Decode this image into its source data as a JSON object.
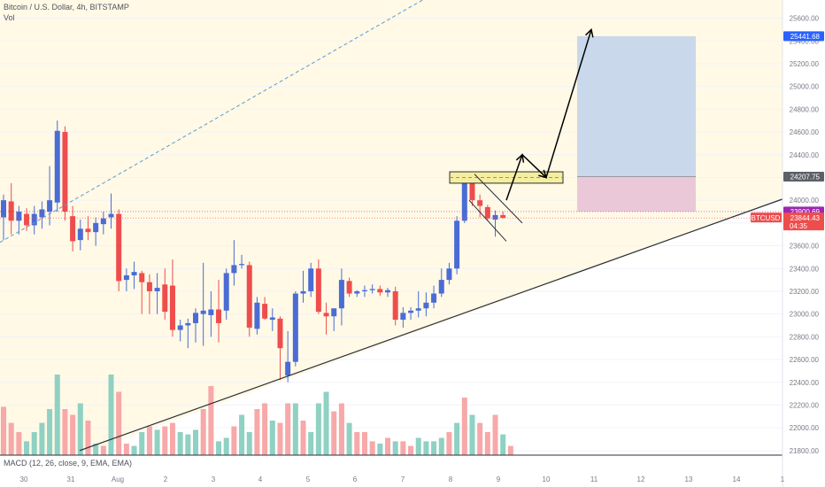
{
  "header": {
    "title": "Bitcoin / U.S. Dollar, 4h, BITSTAMP",
    "vol_label": "Vol",
    "macd_label": "MACD (12, 26, close, 9, EMA, EMA)"
  },
  "colors": {
    "up": "#4a6cd4",
    "down": "#ef4d4d",
    "vol_up": "#8fd1c2",
    "vol_down": "#f7a8a8",
    "zone_fill": "#fff9e6",
    "target_box": "#c9d8ea",
    "stop_box": "#ebc8d7",
    "price_tag": "#ef4d4d",
    "target_tag": "#2962ff",
    "entry_tag": "#5d6066",
    "purple_tag": "#9c27b0"
  },
  "chart_data": {
    "type": "candlestick",
    "symbol": "BTCUSD",
    "ylim": [
      21760,
      25760
    ],
    "y_ticks": [
      21800,
      22000,
      22200,
      22400,
      22600,
      22800,
      23000,
      23200,
      23400,
      23600,
      23800,
      24000,
      24200,
      24400,
      24600,
      24800,
      25000,
      25200,
      25400,
      25600
    ],
    "y_tick_labels": [
      "21800.00",
      "22000.00",
      "22200.00",
      "22400.00",
      "22600.00",
      "22800.00",
      "23000.00",
      "23200.00",
      "23400.00",
      "23600.00",
      "23800.00",
      "24000.00",
      "24200.00",
      "24400.00",
      "24600.00",
      "24800.00",
      "25000.00",
      "25200.00",
      "25400.00",
      "25600.00"
    ],
    "x_tick_labels": [
      "30",
      "31",
      "Aug",
      "2",
      "3",
      "4",
      "5",
      "6",
      "7",
      "8",
      "9",
      "10",
      "11",
      "12",
      "13",
      "14",
      "1"
    ],
    "candles": [
      {
        "o": 23850,
        "h": 24050,
        "l": 23650,
        "c": 24000
      },
      {
        "o": 23990,
        "h": 24150,
        "l": 23700,
        "c": 23820
      },
      {
        "o": 23820,
        "h": 23950,
        "l": 23700,
        "c": 23900
      },
      {
        "o": 23880,
        "h": 23930,
        "l": 23730,
        "c": 23780
      },
      {
        "o": 23780,
        "h": 23950,
        "l": 23700,
        "c": 23880
      },
      {
        "o": 23850,
        "h": 23990,
        "l": 23750,
        "c": 23920
      },
      {
        "o": 23900,
        "h": 24300,
        "l": 23780,
        "c": 24000
      },
      {
        "o": 23980,
        "h": 24700,
        "l": 23900,
        "c": 24610
      },
      {
        "o": 24600,
        "h": 24650,
        "l": 23820,
        "c": 23900
      },
      {
        "o": 23860,
        "h": 23950,
        "l": 23550,
        "c": 23640
      },
      {
        "o": 23650,
        "h": 23830,
        "l": 23560,
        "c": 23750
      },
      {
        "o": 23750,
        "h": 23860,
        "l": 23650,
        "c": 23720
      },
      {
        "o": 23720,
        "h": 23850,
        "l": 23600,
        "c": 23800
      },
      {
        "o": 23790,
        "h": 23900,
        "l": 23700,
        "c": 23840
      },
      {
        "o": 23850,
        "h": 24060,
        "l": 23750,
        "c": 23880
      },
      {
        "o": 23880,
        "h": 23920,
        "l": 23200,
        "c": 23290
      },
      {
        "o": 23300,
        "h": 23400,
        "l": 23200,
        "c": 23340
      },
      {
        "o": 23340,
        "h": 23460,
        "l": 23220,
        "c": 23370
      },
      {
        "o": 23360,
        "h": 23380,
        "l": 23000,
        "c": 23280
      },
      {
        "o": 23280,
        "h": 23350,
        "l": 23000,
        "c": 23200
      },
      {
        "o": 23200,
        "h": 23360,
        "l": 23000,
        "c": 23230
      },
      {
        "o": 23260,
        "h": 23400,
        "l": 22950,
        "c": 23020
      },
      {
        "o": 23250,
        "h": 23480,
        "l": 22800,
        "c": 22860
      },
      {
        "o": 22860,
        "h": 22950,
        "l": 22760,
        "c": 22900
      },
      {
        "o": 22900,
        "h": 22960,
        "l": 22700,
        "c": 22920
      },
      {
        "o": 22920,
        "h": 23050,
        "l": 22750,
        "c": 23010
      },
      {
        "o": 23000,
        "h": 23450,
        "l": 22720,
        "c": 23030
      },
      {
        "o": 22990,
        "h": 23200,
        "l": 22800,
        "c": 23040
      },
      {
        "o": 23040,
        "h": 23300,
        "l": 22750,
        "c": 22920
      },
      {
        "o": 23030,
        "h": 23400,
        "l": 22950,
        "c": 23360
      },
      {
        "o": 23360,
        "h": 23650,
        "l": 23250,
        "c": 23430
      },
      {
        "o": 23430,
        "h": 23520,
        "l": 23400,
        "c": 23440
      },
      {
        "o": 23430,
        "h": 23460,
        "l": 22800,
        "c": 22880
      },
      {
        "o": 22870,
        "h": 23150,
        "l": 22820,
        "c": 23100
      },
      {
        "o": 23090,
        "h": 23150,
        "l": 22950,
        "c": 22960
      },
      {
        "o": 22950,
        "h": 23050,
        "l": 22850,
        "c": 22970
      },
      {
        "o": 22960,
        "h": 22980,
        "l": 22420,
        "c": 22700
      },
      {
        "o": 22460,
        "h": 22850,
        "l": 22400,
        "c": 22580
      },
      {
        "o": 22580,
        "h": 23200,
        "l": 22540,
        "c": 23180
      },
      {
        "o": 23180,
        "h": 23380,
        "l": 23100,
        "c": 23200
      },
      {
        "o": 23200,
        "h": 23450,
        "l": 23150,
        "c": 23400
      },
      {
        "o": 23400,
        "h": 23480,
        "l": 23000,
        "c": 23020
      },
      {
        "o": 23010,
        "h": 23100,
        "l": 22820,
        "c": 22980
      },
      {
        "o": 22980,
        "h": 23050,
        "l": 22850,
        "c": 23050
      },
      {
        "o": 23050,
        "h": 23400,
        "l": 22900,
        "c": 23300
      },
      {
        "o": 23290,
        "h": 23320,
        "l": 23150,
        "c": 23180
      },
      {
        "o": 23180,
        "h": 23210,
        "l": 23150,
        "c": 23200
      },
      {
        "o": 23200,
        "h": 23250,
        "l": 23150,
        "c": 23210
      },
      {
        "o": 23210,
        "h": 23260,
        "l": 23180,
        "c": 23220
      },
      {
        "o": 23220,
        "h": 23250,
        "l": 23160,
        "c": 23190
      },
      {
        "o": 23190,
        "h": 23230,
        "l": 23150,
        "c": 23210
      },
      {
        "o": 23200,
        "h": 23240,
        "l": 22900,
        "c": 22950
      },
      {
        "o": 22950,
        "h": 23060,
        "l": 22880,
        "c": 23010
      },
      {
        "o": 23010,
        "h": 23060,
        "l": 22950,
        "c": 23030
      },
      {
        "o": 23030,
        "h": 23200,
        "l": 22970,
        "c": 23050
      },
      {
        "o": 23050,
        "h": 23190,
        "l": 22980,
        "c": 23100
      },
      {
        "o": 23100,
        "h": 23250,
        "l": 23050,
        "c": 23180
      },
      {
        "o": 23180,
        "h": 23400,
        "l": 23150,
        "c": 23300
      },
      {
        "o": 23300,
        "h": 23450,
        "l": 23260,
        "c": 23400
      },
      {
        "o": 23400,
        "h": 23860,
        "l": 23350,
        "c": 23820
      },
      {
        "o": 23820,
        "h": 24250,
        "l": 23800,
        "c": 24150
      },
      {
        "o": 24150,
        "h": 24250,
        "l": 23950,
        "c": 24000
      },
      {
        "o": 24000,
        "h": 24050,
        "l": 23850,
        "c": 23950
      },
      {
        "o": 23940,
        "h": 23960,
        "l": 23820,
        "c": 23840
      },
      {
        "o": 23830,
        "h": 23910,
        "l": 23680,
        "c": 23870
      },
      {
        "o": 23870,
        "h": 23900,
        "l": 23840,
        "c": 23845
      }
    ],
    "volume": [
      {
        "v": 0.42,
        "up": false
      },
      {
        "v": 0.28,
        "up": false
      },
      {
        "v": 0.2,
        "up": false
      },
      {
        "v": 0.12,
        "up": true
      },
      {
        "v": 0.2,
        "up": true
      },
      {
        "v": 0.28,
        "up": true
      },
      {
        "v": 0.4,
        "up": true
      },
      {
        "v": 0.7,
        "up": true
      },
      {
        "v": 0.4,
        "up": false
      },
      {
        "v": 0.35,
        "up": false
      },
      {
        "v": 0.45,
        "up": true
      },
      {
        "v": 0.3,
        "up": false
      },
      {
        "v": 0.1,
        "up": true
      },
      {
        "v": 0.08,
        "up": false
      },
      {
        "v": 0.7,
        "up": true
      },
      {
        "v": 0.55,
        "up": false
      },
      {
        "v": 0.1,
        "up": false
      },
      {
        "v": 0.08,
        "up": true
      },
      {
        "v": 0.2,
        "up": true
      },
      {
        "v": 0.25,
        "up": false
      },
      {
        "v": 0.22,
        "up": true
      },
      {
        "v": 0.25,
        "up": false
      },
      {
        "v": 0.28,
        "up": false
      },
      {
        "v": 0.2,
        "up": true
      },
      {
        "v": 0.18,
        "up": true
      },
      {
        "v": 0.22,
        "up": true
      },
      {
        "v": 0.4,
        "up": false
      },
      {
        "v": 0.6,
        "up": false
      },
      {
        "v": 0.12,
        "up": true
      },
      {
        "v": 0.15,
        "up": true
      },
      {
        "v": 0.25,
        "up": false
      },
      {
        "v": 0.35,
        "up": true
      },
      {
        "v": 0.2,
        "up": true
      },
      {
        "v": 0.4,
        "up": false
      },
      {
        "v": 0.45,
        "up": false
      },
      {
        "v": 0.3,
        "up": true
      },
      {
        "v": 0.28,
        "up": false
      },
      {
        "v": 0.45,
        "up": false
      },
      {
        "v": 0.45,
        "up": true
      },
      {
        "v": 0.3,
        "up": false
      },
      {
        "v": 0.2,
        "up": true
      },
      {
        "v": 0.45,
        "up": true
      },
      {
        "v": 0.55,
        "up": true
      },
      {
        "v": 0.38,
        "up": false
      },
      {
        "v": 0.45,
        "up": false
      },
      {
        "v": 0.28,
        "up": true
      },
      {
        "v": 0.2,
        "up": false
      },
      {
        "v": 0.2,
        "up": false
      },
      {
        "v": 0.12,
        "up": false
      },
      {
        "v": 0.1,
        "up": true
      },
      {
        "v": 0.15,
        "up": false
      },
      {
        "v": 0.12,
        "up": true
      },
      {
        "v": 0.12,
        "up": false
      },
      {
        "v": 0.08,
        "up": false
      },
      {
        "v": 0.15,
        "up": true
      },
      {
        "v": 0.12,
        "up": true
      },
      {
        "v": 0.12,
        "up": true
      },
      {
        "v": 0.15,
        "up": true
      },
      {
        "v": 0.2,
        "up": false
      },
      {
        "v": 0.28,
        "up": true
      },
      {
        "v": 0.5,
        "up": false
      },
      {
        "v": 0.35,
        "up": true
      },
      {
        "v": 0.28,
        "up": false
      },
      {
        "v": 0.2,
        "up": false
      },
      {
        "v": 0.35,
        "up": false
      },
      {
        "v": 0.18,
        "up": true
      },
      {
        "v": 0.08,
        "up": false
      }
    ],
    "drawings": {
      "support_line": {
        "x1": 90,
        "y1": 21800,
        "x2": 884,
        "y2": 24010
      },
      "upper_channel": {
        "x1": 0,
        "y1": 23630,
        "x2": 715,
        "y2": 26820
      },
      "resistance_zone": {
        "x1": 508,
        "x2": 636,
        "top": 24250,
        "bottom": 24150,
        "dash": 24200
      },
      "flag_upper": {
        "x1": 536,
        "y1": 24230,
        "x2": 590,
        "y2": 23800
      },
      "flag_lower": {
        "x1": 530,
        "y1": 24000,
        "x2": 572,
        "y2": 23640
      },
      "target_box": {
        "x1": 652,
        "x2": 786,
        "top": 25441.68,
        "bottom": 24207.75
      },
      "stop_box": {
        "x1": 652,
        "x2": 786,
        "top": 24207.75,
        "bottom": 23900.69
      },
      "projection": [
        {
          "x": 572,
          "y": 24000
        },
        {
          "x": 590,
          "y": 24400
        },
        {
          "x": 617,
          "y": 24200
        },
        {
          "x": 668,
          "y": 25500
        }
      ]
    },
    "price_tags": {
      "target": "25441.68",
      "entry": "24207.75",
      "stop": "23900.69",
      "symbol": "BTCUSD",
      "last_price": "23844.43",
      "countdown": "04:35"
    },
    "levels": {
      "target": 25441.68,
      "entry": 24207.75,
      "stop": 23900.69,
      "last": 23844.43
    }
  }
}
